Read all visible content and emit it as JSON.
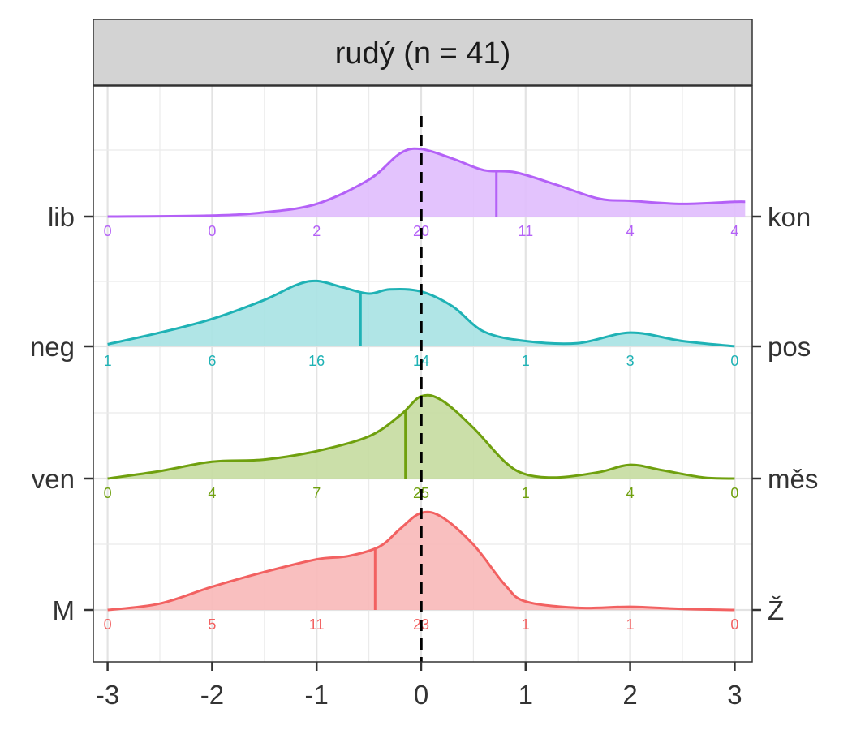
{
  "chart_data": {
    "type": "ridgeline",
    "panel_title": "rudý (n = 41)",
    "xlim": [
      -3,
      3
    ],
    "x_ticks": [
      "-3",
      "-2",
      "-1",
      "0",
      "1",
      "2",
      "3"
    ],
    "count_positions": [
      -3,
      -2,
      -1,
      0,
      1,
      2,
      3
    ],
    "reference_line_x": 0,
    "grid": true,
    "series": [
      {
        "left_label": "M",
        "right_label": "Ž",
        "color": "#f26161",
        "fill": "#f8b8b8",
        "counts": [
          0,
          5,
          11,
          23,
          1,
          1,
          0
        ],
        "mean": -0.44,
        "density": [
          [
            -3,
            0.0
          ],
          [
            -2.5,
            0.06
          ],
          [
            -2,
            0.22
          ],
          [
            -1.5,
            0.36
          ],
          [
            -1,
            0.48
          ],
          [
            -0.7,
            0.51
          ],
          [
            -0.4,
            0.6
          ],
          [
            -0.2,
            0.77
          ],
          [
            0,
            0.92
          ],
          [
            0.2,
            0.88
          ],
          [
            0.5,
            0.62
          ],
          [
            0.8,
            0.24
          ],
          [
            1,
            0.08
          ],
          [
            1.5,
            0.02
          ],
          [
            2,
            0.03
          ],
          [
            2.5,
            0.01
          ],
          [
            3,
            0.0
          ]
        ]
      },
      {
        "left_label": "ven",
        "right_label": "měs",
        "color": "#6fa00e",
        "fill": "#c5dca0",
        "counts": [
          0,
          4,
          7,
          25,
          1,
          4,
          0
        ],
        "mean": -0.15,
        "density": [
          [
            -3,
            0.0
          ],
          [
            -2.5,
            0.07
          ],
          [
            -2,
            0.16
          ],
          [
            -1.5,
            0.18
          ],
          [
            -1,
            0.26
          ],
          [
            -0.5,
            0.4
          ],
          [
            -0.2,
            0.6
          ],
          [
            0,
            0.78
          ],
          [
            0.2,
            0.74
          ],
          [
            0.5,
            0.48
          ],
          [
            0.8,
            0.16
          ],
          [
            1,
            0.04
          ],
          [
            1.3,
            0.01
          ],
          [
            1.7,
            0.06
          ],
          [
            2,
            0.13
          ],
          [
            2.3,
            0.08
          ],
          [
            2.7,
            0.01
          ],
          [
            3,
            0.0
          ]
        ]
      },
      {
        "left_label": "neg",
        "right_label": "pos",
        "color": "#1fb2b5",
        "fill": "#a7e2e3",
        "counts": [
          1,
          6,
          16,
          14,
          1,
          3,
          0
        ],
        "mean": -0.58,
        "density": [
          [
            -3,
            0.02
          ],
          [
            -2.5,
            0.13
          ],
          [
            -2,
            0.26
          ],
          [
            -1.5,
            0.44
          ],
          [
            -1.2,
            0.58
          ],
          [
            -1,
            0.62
          ],
          [
            -0.75,
            0.56
          ],
          [
            -0.5,
            0.5
          ],
          [
            -0.3,
            0.54
          ],
          [
            0,
            0.52
          ],
          [
            0.3,
            0.38
          ],
          [
            0.6,
            0.14
          ],
          [
            1,
            0.05
          ],
          [
            1.5,
            0.03
          ],
          [
            2,
            0.13
          ],
          [
            2.5,
            0.05
          ],
          [
            3,
            0.0
          ]
        ]
      },
      {
        "left_label": "lib",
        "right_label": "kon",
        "color": "#b461f7",
        "fill": "#e0bdfd",
        "counts": [
          0,
          0,
          2,
          20,
          11,
          4,
          4
        ],
        "mean": 0.72,
        "density": [
          [
            -3,
            0.0
          ],
          [
            -2,
            0.01
          ],
          [
            -1.5,
            0.04
          ],
          [
            -1,
            0.12
          ],
          [
            -0.5,
            0.35
          ],
          [
            -0.2,
            0.6
          ],
          [
            0,
            0.64
          ],
          [
            0.3,
            0.55
          ],
          [
            0.6,
            0.44
          ],
          [
            0.9,
            0.42
          ],
          [
            1.3,
            0.3
          ],
          [
            1.7,
            0.17
          ],
          [
            2,
            0.15
          ],
          [
            2.5,
            0.12
          ],
          [
            3,
            0.14
          ],
          [
            3.1,
            0.14
          ]
        ]
      }
    ]
  }
}
